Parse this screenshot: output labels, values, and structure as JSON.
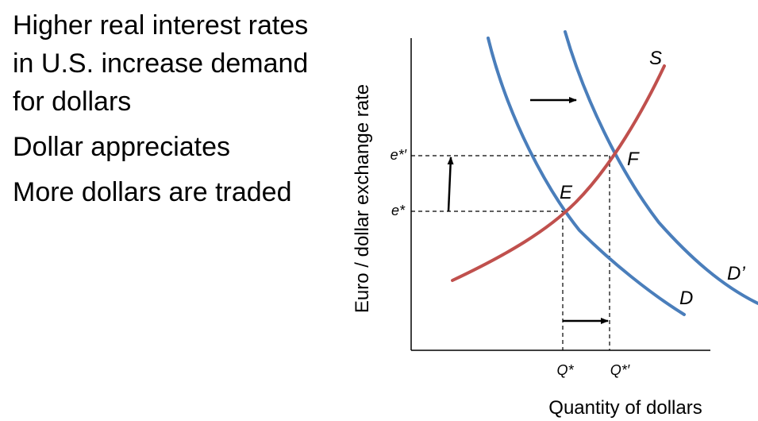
{
  "bullets": [
    "Higher real interest rates in U.S. increase demand for dollars",
    "Dollar appreciates",
    "More dollars are traded"
  ],
  "axes": {
    "y_title": "Euro / dollar exchange rate",
    "x_title": "Quantity of dollars"
  },
  "ticks": {
    "e_star_prime": "e*′",
    "e_star": "e*",
    "q_star": "Q*",
    "q_star_prime": "Q*′"
  },
  "curves": {
    "supply": "S",
    "demand": "D",
    "demand_new": "D’"
  },
  "points": {
    "initial": "E",
    "final": "F"
  },
  "colors": {
    "demand_curve": "#4a7ebb",
    "supply_curve": "#c0504d",
    "axis": "#000000"
  }
}
